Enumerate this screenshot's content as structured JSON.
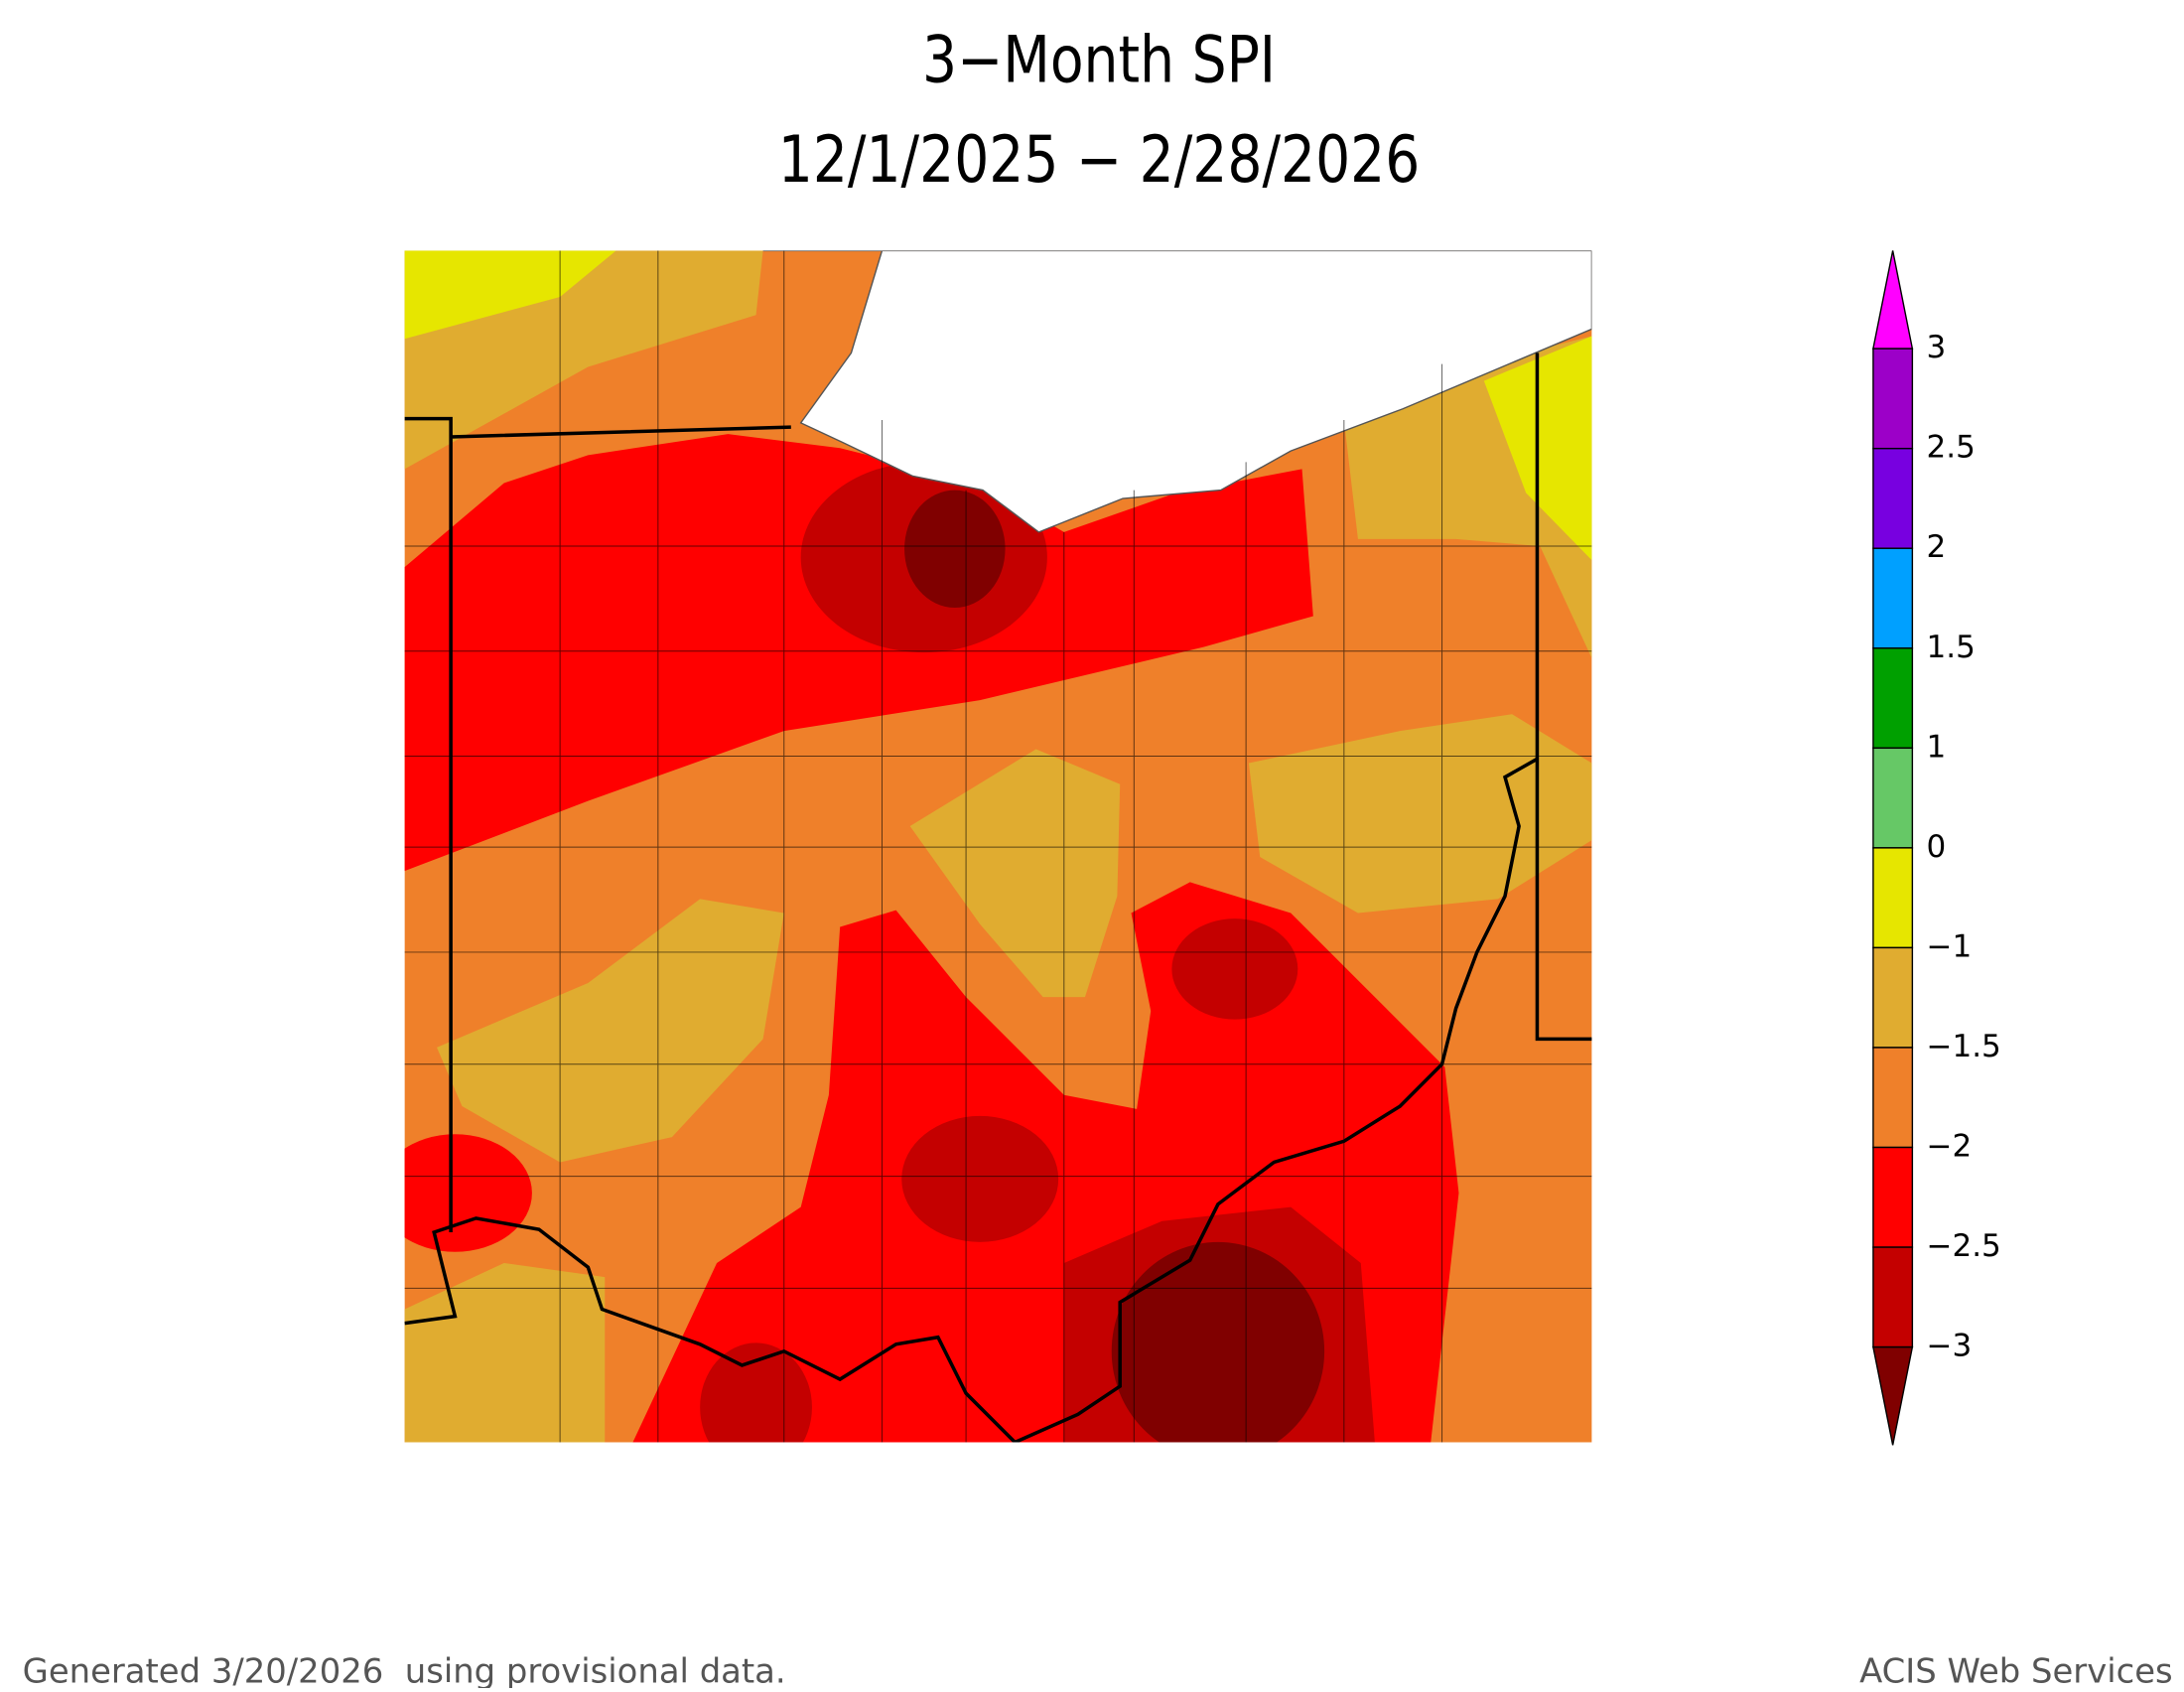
{
  "title": "3−Month SPI",
  "subtitle": "12/1/2025 − 2/28/2026",
  "legend": {
    "labels": [
      "3",
      "2.5",
      "2",
      "1.5",
      "1",
      "0",
      "−1",
      "−1.5",
      "−2",
      "−2.5",
      "−3"
    ],
    "colors": [
      "#ff00ff",
      "#9c00c8",
      "#7800e0",
      "#00a0ff",
      "#00a000",
      "#66c866",
      "#e6e600",
      "#e0ac30",
      "#ef802a",
      "#ff0000",
      "#c40000",
      "#800000"
    ]
  },
  "footer_left": "Generated 3/20/2026  using provisional data.",
  "footer_right": "ACIS Web Services"
}
